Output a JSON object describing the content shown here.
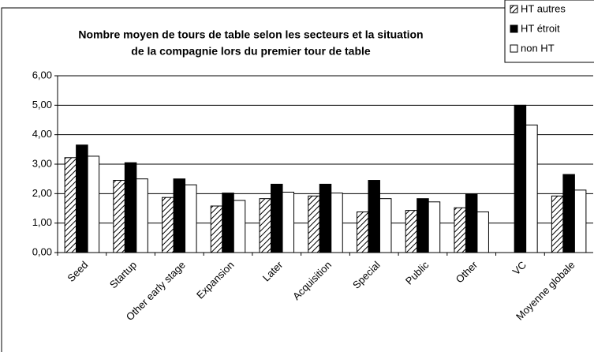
{
  "chart_data": {
    "type": "bar",
    "title": [
      "Nombre moyen de tours de table selon les secteurs et la situation",
      "de la compagnie lors du premier tour de table"
    ],
    "categories": [
      "Seed",
      "Startup",
      "Other early stage",
      "Expansion",
      "Later",
      "Acquisition",
      "Special",
      "Public",
      "Other",
      "VC",
      "Moyenne globale"
    ],
    "series": [
      {
        "name": "HT autres",
        "color": "#000000",
        "pattern": "hatch",
        "values": [
          3.22,
          2.45,
          1.87,
          1.58,
          1.83,
          1.92,
          1.38,
          1.43,
          1.52,
          null,
          1.92
        ]
      },
      {
        "name": "HT étroit",
        "color": "#000000",
        "values": [
          3.65,
          3.05,
          2.5,
          2.02,
          2.32,
          2.32,
          2.45,
          1.83,
          1.98,
          5.0,
          2.65
        ]
      },
      {
        "name": "non HT",
        "color": "#ffffff",
        "values": [
          3.27,
          2.5,
          2.3,
          1.77,
          2.05,
          2.02,
          1.83,
          1.72,
          1.38,
          4.33,
          2.12
        ]
      }
    ],
    "ylim": [
      0,
      6
    ],
    "yticks": [
      {
        "value": 0,
        "label": "0,00"
      },
      {
        "value": 1,
        "label": "1,00"
      },
      {
        "value": 2,
        "label": "2,00"
      },
      {
        "value": 3,
        "label": "3,00"
      },
      {
        "value": 4,
        "label": "4,00"
      },
      {
        "value": 5,
        "label": "5,00"
      },
      {
        "value": 6,
        "label": "6,00"
      }
    ],
    "grid": true,
    "legend": "top-right"
  }
}
